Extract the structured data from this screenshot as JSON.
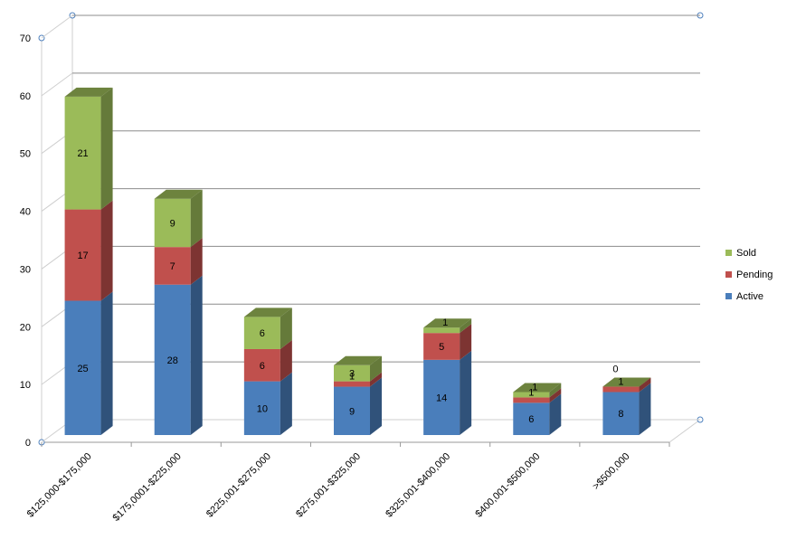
{
  "chart_data": {
    "type": "bar",
    "stacked": true,
    "three_d": true,
    "categories": [
      "$125,000-$175,000",
      "$175,0001-$225,000",
      "$225,001-$275,000",
      "$275,001-$325,000",
      "$325,001-$400,000",
      "$400,001-$500,000",
      ">$500,000"
    ],
    "series": [
      {
        "name": "Active",
        "values": [
          25,
          28,
          10,
          9,
          14,
          6,
          8
        ],
        "color": "#4a7ebb"
      },
      {
        "name": "Pending",
        "values": [
          17,
          7,
          6,
          1,
          5,
          1,
          1
        ],
        "color": "#c0504d"
      },
      {
        "name": "Sold",
        "values": [
          21,
          9,
          6,
          3,
          1,
          1,
          0
        ],
        "color": "#9bbb59"
      }
    ],
    "yticks": [
      "0",
      "10",
      "20",
      "30",
      "40",
      "50",
      "60",
      "70"
    ],
    "ylim": [
      0,
      70
    ],
    "grid": true,
    "legend_position": "right",
    "legend_order": [
      "Sold",
      "Pending",
      "Active"
    ]
  }
}
